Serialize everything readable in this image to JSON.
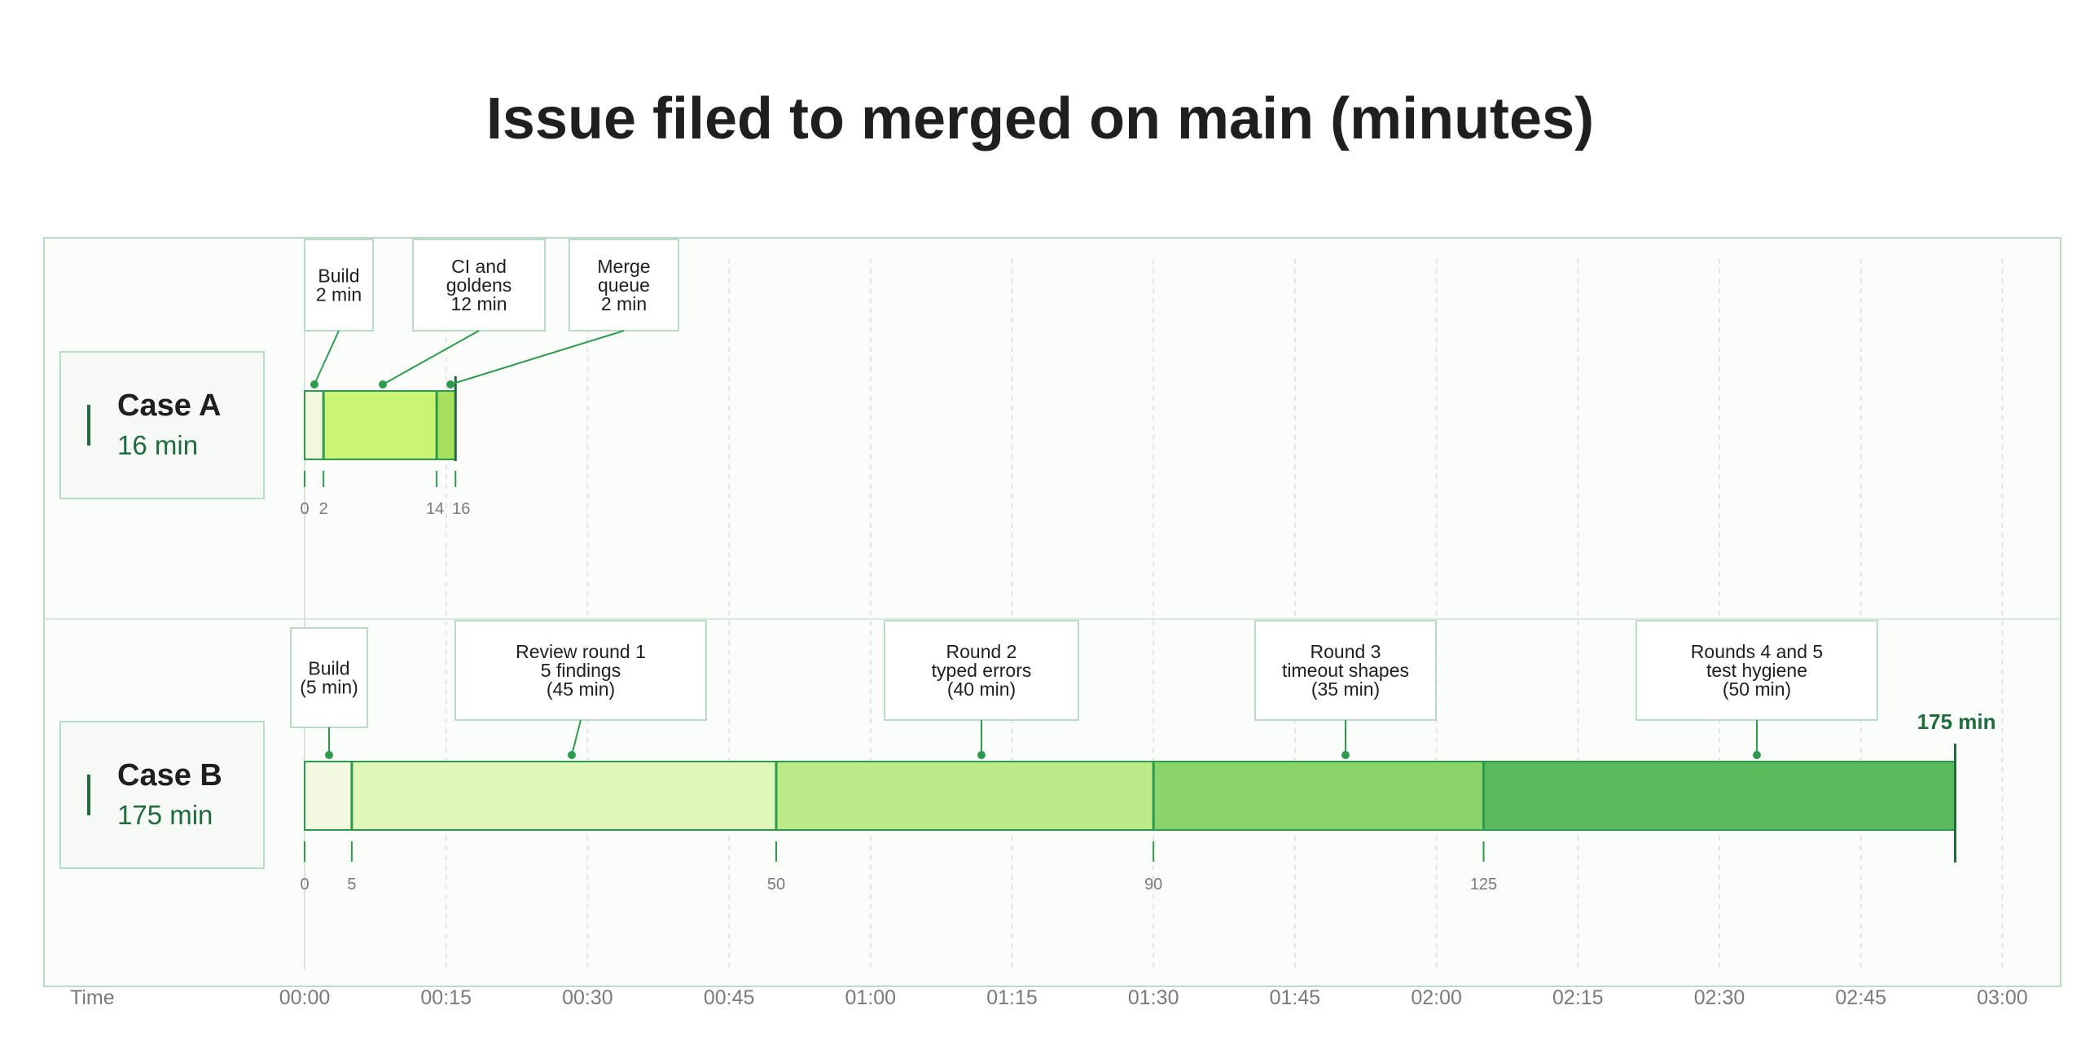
{
  "chart_data": {
    "type": "timeline",
    "title": "Issue filed to merged on main (minutes)",
    "xlabel": "Time",
    "xlim": [
      0,
      180
    ],
    "x_ticks": [
      {
        "value": 0,
        "label": "00:00"
      },
      {
        "value": 15,
        "label": "00:15"
      },
      {
        "value": 30,
        "label": "00:30"
      },
      {
        "value": 45,
        "label": "00:45"
      },
      {
        "value": 60,
        "label": "01:00"
      },
      {
        "value": 75,
        "label": "01:15"
      },
      {
        "value": 90,
        "label": "01:30"
      },
      {
        "value": 105,
        "label": "01:45"
      },
      {
        "value": 120,
        "label": "02:00"
      },
      {
        "value": 135,
        "label": "02:15"
      },
      {
        "value": 150,
        "label": "02:30"
      },
      {
        "value": 165,
        "label": "02:45"
      },
      {
        "value": 180,
        "label": "03:00"
      }
    ],
    "rows": [
      {
        "name": "Case A",
        "total_label": "16 min",
        "total": 16,
        "segments": [
          {
            "start": 0,
            "end": 2,
            "color": "#f1f8dc",
            "label": [
              "Build",
              "2 min"
            ]
          },
          {
            "start": 2,
            "end": 14,
            "color": "#ccf474",
            "label": [
              "CI and",
              "goldens",
              "12 min"
            ]
          },
          {
            "start": 14,
            "end": 16,
            "color": "#a6e05c",
            "label": [
              "Merge",
              "queue",
              "2 min"
            ]
          }
        ],
        "boundary_labels": [
          "0",
          "2",
          "14",
          "16"
        ],
        "end_label": ""
      },
      {
        "name": "Case B",
        "total_label": "175 min",
        "total": 175,
        "segments": [
          {
            "start": 0,
            "end": 5,
            "color": "#f3f9e0",
            "label": [
              "Build",
              "(5 min)"
            ]
          },
          {
            "start": 5,
            "end": 50,
            "color": "#dff7b8",
            "label": [
              "Review round 1",
              "5 findings",
              "(45 min)"
            ]
          },
          {
            "start": 50,
            "end": 90,
            "color": "#bdea88",
            "label": [
              "Round 2",
              "typed errors",
              "(40 min)"
            ]
          },
          {
            "start": 90,
            "end": 125,
            "color": "#8bd46c",
            "label": [
              "Round 3",
              "timeout shapes",
              "(35 min)"
            ]
          },
          {
            "start": 125,
            "end": 175,
            "color": "#5ab95a",
            "label": [
              "Rounds 4 and 5",
              "test hygiene",
              "(50 min)"
            ]
          }
        ],
        "boundary_labels": [
          "0",
          "5",
          "50",
          "90",
          "125"
        ],
        "end_label": "175 min"
      }
    ],
    "colors": {
      "accent": "#2e9a4e",
      "dark_accent": "#1f6b3e",
      "panel_border": "#b9dcc4",
      "panel_fill": "#fbfdfb",
      "label_box_fill": "#f6f9f5"
    },
    "grid": true
  }
}
